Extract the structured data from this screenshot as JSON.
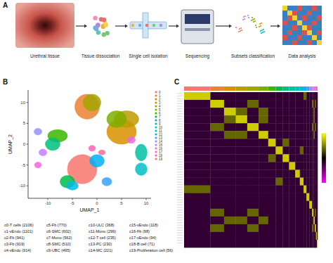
{
  "panel_labels": [
    "A",
    "B",
    "C"
  ],
  "workflow": {
    "steps": [
      "Urethral tissue",
      "Tissue dissociation",
      "Single cell isolation",
      "Sequencing",
      "Subsets classification",
      "Data analysis"
    ]
  },
  "chart_data": [
    {
      "type": "scatter",
      "x_label": "UMAP_1",
      "y_label": "UMAP_2",
      "xlim": [
        -14,
        11
      ],
      "ylim": [
        -13,
        13
      ],
      "xticks": [
        -10,
        -5,
        0,
        5,
        10
      ],
      "yticks": [
        -10,
        -5,
        0,
        5,
        10
      ],
      "series": [
        {
          "name": "0",
          "color": "#F8766D",
          "x": [
            -3
          ],
          "values": [
            -6
          ],
          "spread_x": [
            3
          ],
          "spread_y": [
            3.5
          ]
        },
        {
          "name": "1",
          "color": "#EA8331",
          "x": [
            -2
          ],
          "values": [
            9
          ],
          "spread_x": [
            2.5
          ],
          "spread_y": [
            3
          ]
        },
        {
          "name": "2",
          "color": "#D89000",
          "x": [
            5
          ],
          "values": [
            3
          ],
          "spread_x": [
            3
          ],
          "spread_y": [
            3
          ]
        },
        {
          "name": "3",
          "color": "#C09B00",
          "x": [
            6
          ],
          "values": [
            6
          ],
          "spread_x": [
            2.5
          ],
          "spread_y": [
            2
          ]
        },
        {
          "name": "4",
          "color": "#A3A500",
          "x": [
            -1
          ],
          "values": [
            10
          ],
          "spread_x": [
            1.8
          ],
          "spread_y": [
            2
          ]
        },
        {
          "name": "5",
          "color": "#7CAE00",
          "x": [
            4
          ],
          "values": [
            6
          ],
          "spread_x": [
            2
          ],
          "spread_y": [
            2
          ]
        },
        {
          "name": "6",
          "color": "#39B600",
          "x": [
            -8
          ],
          "values": [
            2
          ],
          "spread_x": [
            2
          ],
          "spread_y": [
            1.5
          ]
        },
        {
          "name": "7",
          "color": "#00BB4E",
          "x": [
            -6
          ],
          "values": [
            -9
          ],
          "spread_x": [
            1.5
          ],
          "spread_y": [
            1.5
          ]
        },
        {
          "name": "8",
          "color": "#00BF7D",
          "x": [
            -9
          ],
          "values": [
            0
          ],
          "spread_x": [
            1.5
          ],
          "spread_y": [
            1.5
          ]
        },
        {
          "name": "9",
          "color": "#00C1A3",
          "x": [
            9
          ],
          "values": [
            -2
          ],
          "spread_x": [
            1.2
          ],
          "spread_y": [
            2
          ]
        },
        {
          "name": "10",
          "color": "#00BFC4",
          "x": [
            9
          ],
          "values": [
            -6
          ],
          "spread_x": [
            1.2
          ],
          "spread_y": [
            1.5
          ]
        },
        {
          "name": "11",
          "color": "#00BAE0",
          "x": [
            -5
          ],
          "values": [
            -10
          ],
          "spread_x": [
            1.2
          ],
          "spread_y": [
            1
          ]
        },
        {
          "name": "12",
          "color": "#00B0F6",
          "x": [
            0
          ],
          "values": [
            -4
          ],
          "spread_x": [
            1.5
          ],
          "spread_y": [
            1.5
          ]
        },
        {
          "name": "13",
          "color": "#35A2FF",
          "x": [
            2
          ],
          "values": [
            -9
          ],
          "spread_x": [
            1
          ],
          "spread_y": [
            1
          ]
        },
        {
          "name": "14",
          "color": "#9590FF",
          "x": [
            -12
          ],
          "values": [
            3
          ],
          "spread_x": [
            0.8
          ],
          "spread_y": [
            0.8
          ]
        },
        {
          "name": "15",
          "color": "#C77CFF",
          "x": [
            -11
          ],
          "values": [
            -2
          ],
          "spread_x": [
            0.8
          ],
          "spread_y": [
            0.8
          ]
        },
        {
          "name": "16",
          "color": "#E76BF3",
          "x": [
            7
          ],
          "values": [
            1
          ],
          "spread_x": [
            0.8
          ],
          "spread_y": [
            0.8
          ]
        },
        {
          "name": "17",
          "color": "#FA62DB",
          "x": [
            -12
          ],
          "values": [
            -5
          ],
          "spread_x": [
            0.7
          ],
          "spread_y": [
            0.7
          ]
        },
        {
          "name": "18",
          "color": "#FF62BC",
          "x": [
            -1
          ],
          "values": [
            -1
          ],
          "spread_x": [
            0.7
          ],
          "spread_y": [
            0.7
          ]
        },
        {
          "name": "19",
          "color": "#FF6C91",
          "x": [
            1
          ],
          "values": [
            -2
          ],
          "spread_x": [
            0.7
          ],
          "spread_y": [
            0.6
          ]
        }
      ],
      "cluster_labels": [
        "c0-T cells (2106)",
        "c1-vEndo (1101)",
        "c2-Fb (941)",
        "c3-Fb (919)",
        "c4-vEndo (914)",
        "c5-Fb (770)",
        "c6-SMC (602)",
        "c7-Mono (562)",
        "c8-SMC (510)",
        "c9-UBC (495)",
        "c10-ULC (368)",
        "c11-Mono (299)",
        "c12-T cell (235)",
        "c13-PC (230)",
        "c14-MC (221)",
        "c15-vEndo (118)",
        "c16-Fb (98)",
        "c17-vEndo (94)",
        "c18-B cell (71)",
        "c19-Proliferation cell (56)"
      ],
      "legend": "right",
      "tick_labels": true
    },
    {
      "type": "heatmap",
      "column_widths": [
        2106,
        1101,
        941,
        919,
        914,
        770,
        602,
        562,
        510,
        495,
        368,
        299,
        235,
        230,
        221,
        118,
        98,
        94,
        71,
        56
      ],
      "colors": [
        "#F8766D",
        "#EA8331",
        "#D89000",
        "#C09B00",
        "#A3A500",
        "#7CAE00",
        "#39B600",
        "#00BB4E",
        "#00BF7D",
        "#00C1A3",
        "#00BFC4",
        "#00BAE0",
        "#00B0F6",
        "#35A2FF",
        "#9590FF",
        "#C77CFF",
        "#E76BF3",
        "#FA62DB",
        "#FF62BC",
        "#FF6C91"
      ],
      "values": [
        [
          2,
          -0.5,
          -0.5,
          -0.5,
          -0.5,
          -0.5,
          -0.5,
          -0.5,
          -0.5,
          -0.5,
          -0.5,
          -0.5,
          1,
          -0.5,
          -0.5,
          -0.5,
          -0.5,
          -0.5,
          -0.5,
          -0.5
        ],
        [
          -0.5,
          2,
          -0.5,
          -0.5,
          1,
          -0.5,
          -0.5,
          -0.5,
          -0.5,
          -0.5,
          -0.5,
          -0.5,
          -0.5,
          -0.5,
          -0.5,
          1,
          -0.5,
          1,
          -0.5,
          -0.5
        ],
        [
          -0.5,
          -0.5,
          2,
          1,
          -0.5,
          1,
          -0.5,
          -0.5,
          -0.5,
          -0.5,
          -0.5,
          -0.5,
          -0.5,
          -0.5,
          -0.5,
          -0.5,
          1,
          -0.5,
          -0.5,
          -0.5
        ],
        [
          -0.5,
          -0.5,
          1,
          2,
          -0.5,
          1,
          -0.5,
          -0.5,
          -0.5,
          -0.5,
          -0.5,
          -0.5,
          -0.5,
          -0.5,
          -0.5,
          -0.5,
          1,
          -0.5,
          -0.5,
          -0.5
        ],
        [
          -0.5,
          1,
          -0.5,
          -0.5,
          2,
          -0.5,
          -0.5,
          -0.5,
          -0.5,
          -0.5,
          -0.5,
          -0.5,
          -0.5,
          -0.5,
          -0.5,
          1,
          -0.5,
          1,
          -0.5,
          -0.5
        ],
        [
          -0.5,
          -0.5,
          1,
          1,
          -0.5,
          2,
          -0.5,
          -0.5,
          -0.5,
          -0.5,
          -0.5,
          -0.5,
          -0.5,
          -0.5,
          -0.5,
          -0.5,
          1,
          -0.5,
          -0.5,
          -0.5
        ],
        [
          -0.5,
          -0.5,
          -0.5,
          -0.5,
          -0.5,
          -0.5,
          2,
          -0.5,
          1,
          -0.5,
          -0.5,
          -0.5,
          -0.5,
          -0.5,
          -0.5,
          -0.5,
          -0.5,
          -0.5,
          -0.5,
          -0.5
        ],
        [
          -0.5,
          -0.5,
          -0.5,
          -0.5,
          -0.5,
          -0.5,
          -0.5,
          2,
          -0.5,
          -0.5,
          -0.5,
          1,
          -0.5,
          -0.5,
          -0.5,
          -0.5,
          -0.5,
          -0.5,
          -0.5,
          -0.5
        ],
        [
          -0.5,
          -0.5,
          -0.5,
          -0.5,
          -0.5,
          -0.5,
          1,
          -0.5,
          2,
          -0.5,
          -0.5,
          -0.5,
          -0.5,
          -0.5,
          -0.5,
          -0.5,
          -0.5,
          -0.5,
          -0.5,
          -0.5
        ],
        [
          -0.5,
          -0.5,
          -0.5,
          -0.5,
          -0.5,
          -0.5,
          -0.5,
          -0.5,
          -0.5,
          2,
          -0.5,
          -0.5,
          -0.5,
          -0.5,
          -0.5,
          -0.5,
          -0.5,
          -0.5,
          -0.5,
          -0.5
        ],
        [
          -0.5,
          -0.5,
          -0.5,
          -0.5,
          -0.5,
          -0.5,
          -0.5,
          -0.5,
          -0.5,
          -0.5,
          2,
          -0.5,
          -0.5,
          -0.5,
          -0.5,
          -0.5,
          -0.5,
          -0.5,
          -0.5,
          -0.5
        ],
        [
          -0.5,
          -0.5,
          -0.5,
          -0.5,
          -0.5,
          -0.5,
          -0.5,
          1,
          -0.5,
          -0.5,
          -0.5,
          2,
          -0.5,
          -0.5,
          -0.5,
          -0.5,
          -0.5,
          -0.5,
          -0.5,
          -0.5
        ],
        [
          1,
          -0.5,
          -0.5,
          -0.5,
          -0.5,
          -0.5,
          -0.5,
          -0.5,
          -0.5,
          -0.5,
          -0.5,
          -0.5,
          2,
          -0.5,
          -0.5,
          -0.5,
          -0.5,
          -0.5,
          -0.5,
          -0.5
        ],
        [
          -0.5,
          -0.5,
          -0.5,
          -0.5,
          -0.5,
          -0.5,
          -0.5,
          -0.5,
          -0.5,
          -0.5,
          -0.5,
          -0.5,
          -0.5,
          2,
          -0.5,
          -0.5,
          -0.5,
          -0.5,
          -0.5,
          -0.5
        ],
        [
          -0.5,
          -0.5,
          -0.5,
          -0.5,
          -0.5,
          -0.5,
          -0.5,
          -0.5,
          -0.5,
          -0.5,
          -0.5,
          -0.5,
          -0.5,
          -0.5,
          2,
          -0.5,
          -0.5,
          -0.5,
          -0.5,
          -0.5
        ],
        [
          -0.5,
          1,
          -0.5,
          -0.5,
          1,
          -0.5,
          -0.5,
          -0.5,
          -0.5,
          -0.5,
          -0.5,
          -0.5,
          -0.5,
          -0.5,
          -0.5,
          2,
          -0.5,
          1,
          -0.5,
          -0.5
        ],
        [
          -0.5,
          -0.5,
          1,
          1,
          -0.5,
          1,
          -0.5,
          -0.5,
          -0.5,
          -0.5,
          -0.5,
          -0.5,
          -0.5,
          -0.5,
          -0.5,
          -0.5,
          2,
          -0.5,
          -0.5,
          -0.5
        ],
        [
          -0.5,
          1,
          -0.5,
          -0.5,
          1,
          -0.5,
          -0.5,
          -0.5,
          -0.5,
          -0.5,
          -0.5,
          -0.5,
          -0.5,
          -0.5,
          -0.5,
          1,
          -0.5,
          2,
          -0.5,
          -0.5
        ],
        [
          -0.5,
          -0.5,
          -0.5,
          -0.5,
          -0.5,
          -0.5,
          -0.5,
          -0.5,
          -0.5,
          -0.5,
          -0.5,
          -0.5,
          -0.5,
          -0.5,
          -0.5,
          -0.5,
          -0.5,
          -0.5,
          2,
          -0.5
        ],
        [
          -0.5,
          -0.5,
          -0.5,
          -0.5,
          -0.5,
          -0.5,
          -0.5,
          -0.5,
          -0.5,
          -0.5,
          -0.5,
          -0.5,
          -0.5,
          -0.5,
          -0.5,
          -0.5,
          -0.5,
          -0.5,
          -0.5,
          2
        ]
      ],
      "colorbar": {
        "range": [
          -2.5,
          2.5
        ]
      },
      "tick_labels": false
    }
  ]
}
